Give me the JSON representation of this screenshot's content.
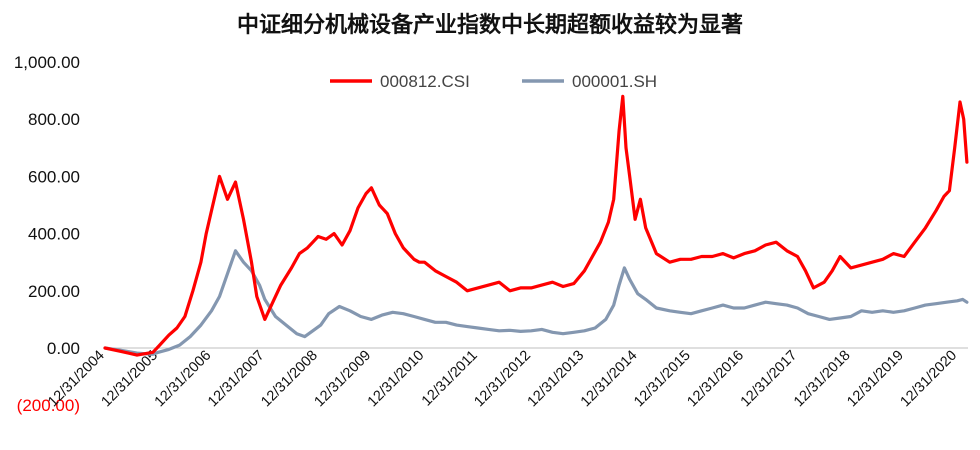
{
  "chart_data": {
    "type": "line",
    "title": "中证细分机械设备产业指数中长期超额收益较为显著",
    "xlabel": "",
    "ylabel": "",
    "ylim": [
      -200,
      1000
    ],
    "y_ticks": [
      "(200.00)",
      "0.00",
      "200.00",
      "400.00",
      "600.00",
      "800.00",
      "1,000.00"
    ],
    "y_tick_values": [
      -200,
      0,
      200,
      400,
      600,
      800,
      1000
    ],
    "x_ticks": [
      "12/31/2004",
      "12/31/2005",
      "12/31/2006",
      "12/31/2007",
      "12/31/2008",
      "12/31/2009",
      "12/31/2010",
      "12/31/2011",
      "12/31/2012",
      "12/31/2013",
      "12/31/2014",
      "12/31/2015",
      "12/31/2016",
      "12/31/2017",
      "12/31/2018",
      "12/31/2019",
      "12/31/2020"
    ],
    "x_tick_values": [
      2005,
      2006,
      2007,
      2008,
      2009,
      2010,
      2011,
      2012,
      2013,
      2014,
      2015,
      2016,
      2017,
      2018,
      2019,
      2020,
      2021
    ],
    "xlim": [
      2005,
      2021.2
    ],
    "legend_position": "top-center",
    "grid": false,
    "series": [
      {
        "name": "000812.CSI",
        "color": "#ff0000",
        "x": [
          2005,
          2005.3,
          2005.6,
          2005.9,
          2006.0,
          2006.2,
          2006.35,
          2006.5,
          2006.65,
          2006.8,
          2006.9,
          2007.0,
          2007.15,
          2007.3,
          2007.45,
          2007.6,
          2007.75,
          2007.85,
          2008.0,
          2008.15,
          2008.3,
          2008.5,
          2008.65,
          2008.8,
          2008.9,
          2009.0,
          2009.15,
          2009.3,
          2009.45,
          2009.6,
          2009.75,
          2009.9,
          2010.0,
          2010.15,
          2010.3,
          2010.45,
          2010.6,
          2010.8,
          2010.9,
          2011.0,
          2011.2,
          2011.4,
          2011.6,
          2011.8,
          2012.0,
          2012.2,
          2012.4,
          2012.6,
          2012.8,
          2013.0,
          2013.2,
          2013.4,
          2013.6,
          2013.8,
          2014.0,
          2014.15,
          2014.3,
          2014.45,
          2014.55,
          2014.6,
          2014.65,
          2014.72,
          2014.78,
          2014.85,
          2014.95,
          2015.05,
          2015.15,
          2015.35,
          2015.6,
          2015.8,
          2016.0,
          2016.2,
          2016.4,
          2016.6,
          2016.8,
          2017.0,
          2017.2,
          2017.4,
          2017.6,
          2017.8,
          2018.0,
          2018.15,
          2018.3,
          2018.5,
          2018.65,
          2018.8,
          2019.0,
          2019.2,
          2019.4,
          2019.6,
          2019.8,
          2020.0,
          2020.2,
          2020.4,
          2020.6,
          2020.75,
          2020.85,
          2020.95,
          2021.05,
          2021.12,
          2021.18
        ],
        "values": [
          0,
          -12,
          -25,
          -15,
          5,
          45,
          70,
          110,
          200,
          300,
          400,
          480,
          600,
          520,
          580,
          450,
          300,
          180,
          100,
          160,
          220,
          280,
          330,
          350,
          370,
          390,
          380,
          400,
          360,
          410,
          490,
          540,
          560,
          500,
          470,
          400,
          350,
          310,
          300,
          300,
          270,
          250,
          230,
          200,
          210,
          220,
          230,
          200,
          210,
          210,
          220,
          230,
          215,
          225,
          270,
          320,
          370,
          440,
          520,
          640,
          760,
          880,
          700,
          600,
          450,
          520,
          420,
          330,
          300,
          310,
          310,
          320,
          320,
          330,
          315,
          330,
          340,
          360,
          370,
          340,
          320,
          270,
          210,
          230,
          270,
          320,
          280,
          290,
          300,
          310,
          330,
          320,
          370,
          420,
          480,
          530,
          550,
          700,
          860,
          800,
          650
        ]
      },
      {
        "name": "000001.SH",
        "color": "#8497b0",
        "x": [
          2005,
          2005.3,
          2005.6,
          2005.9,
          2006.0,
          2006.2,
          2006.4,
          2006.6,
          2006.8,
          2007.0,
          2007.15,
          2007.3,
          2007.45,
          2007.6,
          2007.75,
          2007.9,
          2008.0,
          2008.2,
          2008.4,
          2008.6,
          2008.75,
          2008.9,
          2009.05,
          2009.2,
          2009.4,
          2009.6,
          2009.8,
          2010.0,
          2010.2,
          2010.4,
          2010.6,
          2010.8,
          2011.0,
          2011.2,
          2011.4,
          2011.6,
          2011.8,
          2012.0,
          2012.2,
          2012.4,
          2012.6,
          2012.8,
          2013.0,
          2013.2,
          2013.4,
          2013.6,
          2013.8,
          2014.0,
          2014.2,
          2014.4,
          2014.55,
          2014.65,
          2014.75,
          2014.85,
          2015.0,
          2015.15,
          2015.35,
          2015.6,
          2015.8,
          2016.0,
          2016.2,
          2016.4,
          2016.6,
          2016.8,
          2017.0,
          2017.2,
          2017.4,
          2017.6,
          2017.8,
          2018.0,
          2018.2,
          2018.4,
          2018.6,
          2018.8,
          2019.0,
          2019.2,
          2019.4,
          2019.6,
          2019.8,
          2020.0,
          2020.2,
          2020.4,
          2020.6,
          2020.8,
          2021.0,
          2021.1,
          2021.18
        ],
        "values": [
          0,
          -8,
          -18,
          -22,
          -15,
          -5,
          10,
          40,
          80,
          130,
          180,
          260,
          340,
          300,
          270,
          220,
          170,
          110,
          80,
          50,
          40,
          60,
          80,
          120,
          145,
          130,
          110,
          100,
          115,
          125,
          120,
          110,
          100,
          90,
          90,
          80,
          75,
          70,
          65,
          60,
          62,
          58,
          60,
          65,
          55,
          50,
          55,
          60,
          70,
          100,
          150,
          220,
          280,
          240,
          190,
          170,
          140,
          130,
          125,
          120,
          130,
          140,
          150,
          140,
          140,
          150,
          160,
          155,
          150,
          140,
          120,
          110,
          100,
          105,
          110,
          130,
          125,
          130,
          125,
          130,
          140,
          150,
          155,
          160,
          165,
          170,
          160
        ]
      }
    ]
  }
}
